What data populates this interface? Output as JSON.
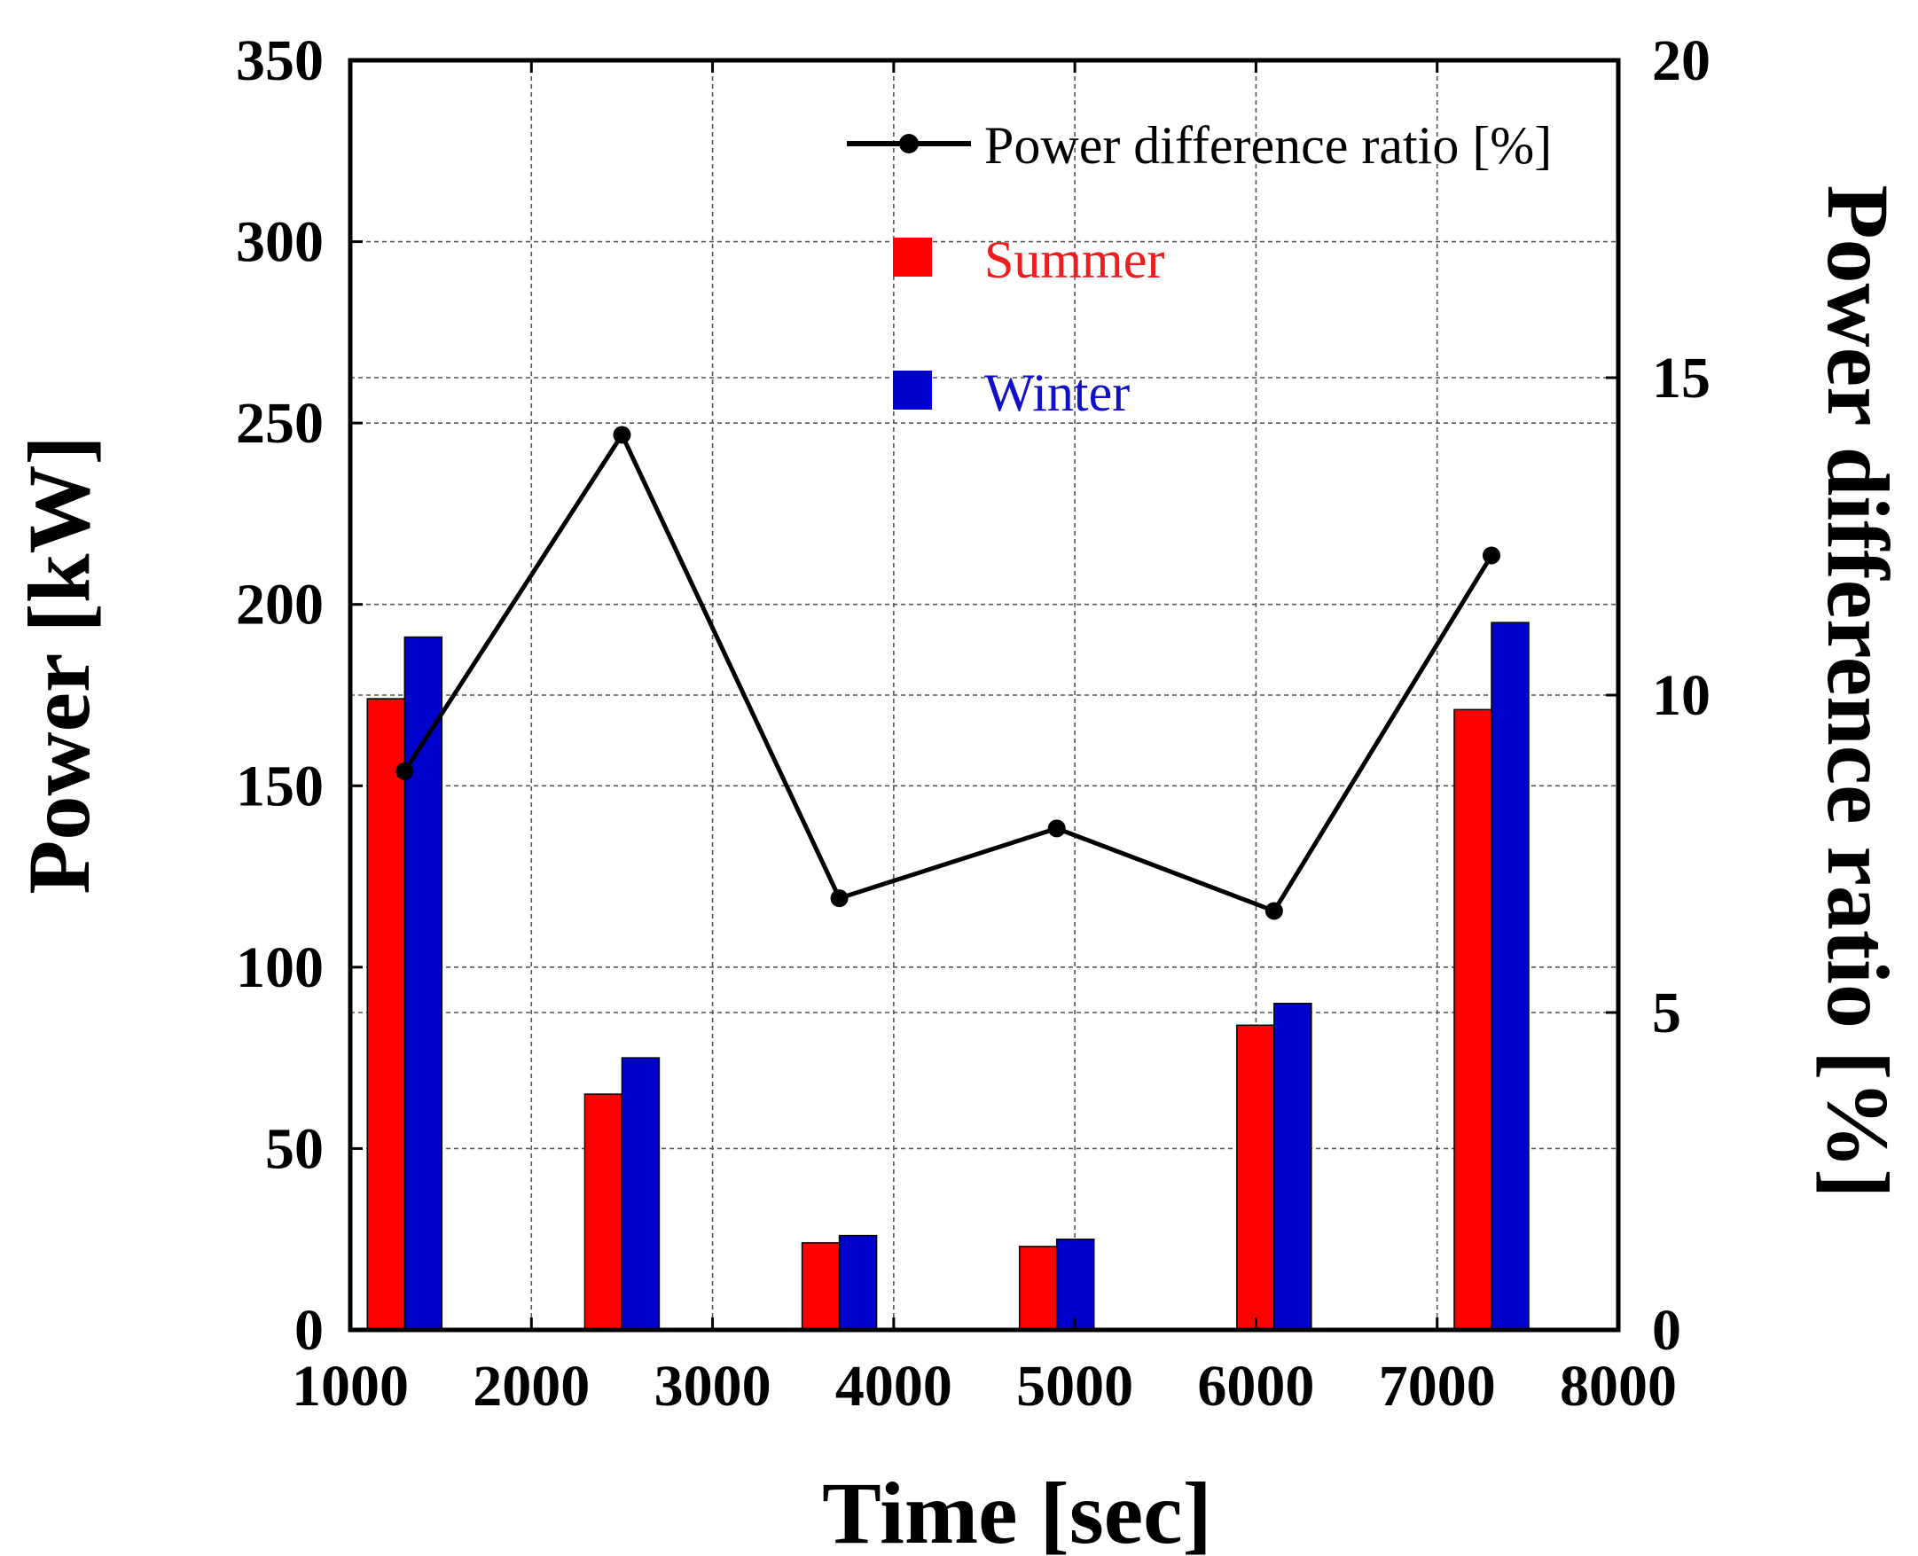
{
  "chart_data": {
    "type": "bar",
    "x_categories": [
      1300,
      2500,
      3700,
      4900,
      6100,
      7300
    ],
    "series": [
      {
        "name": "Summer",
        "axis": "left",
        "type": "bar",
        "color": "#ff0000",
        "values": [
          174,
          65,
          24,
          23,
          84,
          171
        ]
      },
      {
        "name": "Winter",
        "axis": "left",
        "type": "bar",
        "color": "#0000cc",
        "values": [
          191,
          75,
          26,
          25,
          90,
          195
        ]
      },
      {
        "name": "Power difference ratio [%]",
        "axis": "right",
        "type": "line",
        "color": "#000000",
        "values": [
          8.8,
          14.1,
          6.8,
          7.9,
          6.6,
          12.2
        ]
      }
    ],
    "xlabel": "Time [sec]",
    "ylabel_left": "Power [kW]",
    "ylabel_right": "Power difference ratio [%]",
    "xlim": [
      1000,
      8000
    ],
    "ylim_left": [
      0,
      350
    ],
    "ylim_right": [
      0,
      20
    ],
    "x_ticks": [
      1000,
      2000,
      3000,
      4000,
      5000,
      6000,
      7000,
      8000
    ],
    "y_ticks_left": [
      0,
      50,
      100,
      150,
      200,
      250,
      300,
      350
    ],
    "y_ticks_right": [
      0,
      5,
      10,
      15,
      20
    ],
    "grid": true,
    "legend_position": "top-right"
  }
}
